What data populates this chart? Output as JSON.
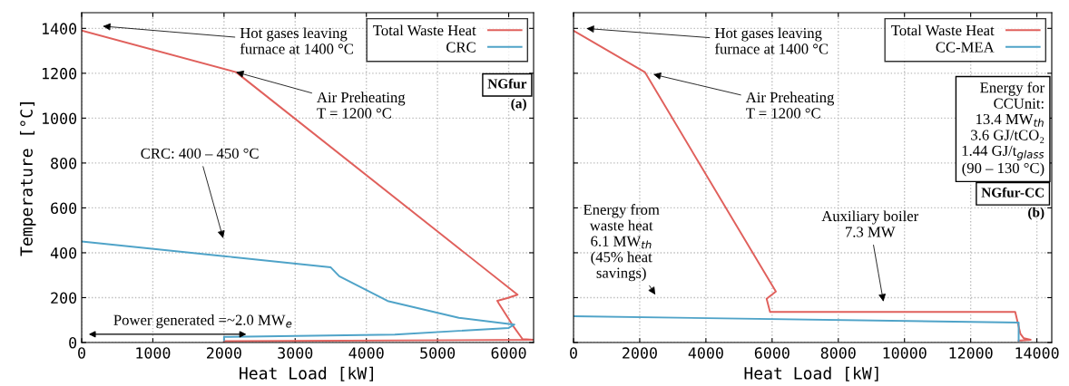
{
  "chart_data": [
    {
      "type": "line",
      "xlabel": "Heat Load [kW]",
      "ylabel": "Temperature [°C]",
      "xlim": [
        0,
        6350
      ],
      "ylim": [
        0,
        1470
      ],
      "xticks": [
        0,
        1000,
        2000,
        3000,
        4000,
        5000,
        6000
      ],
      "yticks": [
        0,
        200,
        400,
        600,
        800,
        1000,
        1200,
        1400
      ],
      "grid": true,
      "legend": "top right",
      "line_style": "solid",
      "marker": "none",
      "series": [
        {
          "name": "Total Waste Heat",
          "color": "#e0605c",
          "x": [
            0,
            2170,
            6125,
            5980,
            5840,
            5860,
            6075,
            6195,
            6350,
            2000
          ],
          "values": [
            1390,
            1205,
            213,
            198,
            186,
            175,
            68,
            15,
            12,
            6
          ]
        },
        {
          "name": "CRC",
          "color": "#4fa3c8",
          "x": [
            0,
            2000,
            3500,
            3620,
            4300,
            5300,
            6080,
            6000,
            4400,
            2000,
            2000
          ],
          "values": [
            450,
            385,
            335,
            295,
            185,
            110,
            80,
            65,
            35,
            25,
            10
          ]
        }
      ],
      "annotations": [
        "Hot gases leaving\nfurnace at 1400 °C",
        {
          "text": "Air Preheating\nT = 1200 °C",
          "x": 2170,
          "y": 1205
        },
        "CRC: 400 – 450 °C",
        "Power generated =~2.0 MW$_{e}$",
        "NGfur",
        "(a)"
      ]
    },
    {
      "type": "line",
      "xlabel": "Heat Load [kW]",
      "xlim": [
        0,
        14450
      ],
      "ylim": [
        0,
        1470
      ],
      "xticks": [
        0,
        2000,
        4000,
        6000,
        8000,
        10000,
        12000,
        14000
      ],
      "yticks": [
        0,
        200,
        400,
        600,
        800,
        1000,
        1200,
        1400
      ],
      "tick_labels": "x",
      "grid": true,
      "legend": "top right",
      "line_style": "solid",
      "marker": "none",
      "series": [
        {
          "name": "Total Waste Heat",
          "color": "#e0605c",
          "x": [
            0,
            2155,
            6114,
            5834,
            5938,
            13346,
            13502,
            13606,
            13813,
            13450
          ],
          "values": [
            1390,
            1205,
            227,
            195,
            136,
            136,
            39,
            19,
            12,
            8
          ]
        },
        {
          "name": "CC-MEA",
          "color": "#4fa3c8",
          "x": [
            0,
            13450,
            13450
          ],
          "values": [
            117,
            89,
            8
          ]
        }
      ],
      "annotations": [
        "Hot gases leaving\nfurnace at 1400 °C",
        "Air Preheating\nT = 1200 °C",
        "Energy from\nwaste heat\n6.1 MW$_{th}$\n(45% heat\nsavings)",
        "Auxiliary boiler\n7.3 MW",
        "Energy for\nCCUnit:\n13.4 MW$_{th}$\n3.6 GJ/tCO₂\n1.44 GJ/t$_{glass}$\n(90 – 130 °C)",
        "NGfur-CC",
        "(b)"
      ]
    }
  ]
}
